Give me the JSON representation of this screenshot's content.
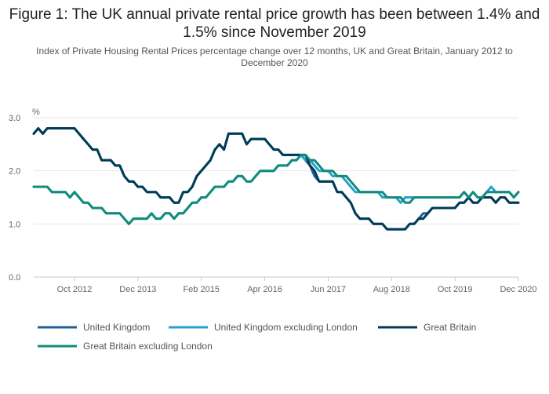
{
  "chart_data": {
    "type": "line",
    "title": "Figure 1: The UK annual private rental price growth has been between 1.4% and 1.5% since November 2019",
    "subtitle": "Index of Private Housing Rental Prices percentage change over 12 months, UK and Great Britain, January 2012 to December 2020",
    "ylabel": "%",
    "ylim": [
      0,
      3
    ],
    "yticks": [
      "0.0",
      "1.0",
      "2.0",
      "3.0"
    ],
    "xlim": [
      "2012-01",
      "2020-12"
    ],
    "xticks": [
      {
        "label": "Oct 2012",
        "date": "2012-10"
      },
      {
        "label": "Dec 2013",
        "date": "2013-12"
      },
      {
        "label": "Feb 2015",
        "date": "2015-02"
      },
      {
        "label": "Apr 2016",
        "date": "2016-04"
      },
      {
        "label": "Jun 2017",
        "date": "2017-06"
      },
      {
        "label": "Aug 2018",
        "date": "2018-08"
      },
      {
        "label": "Oct 2019",
        "date": "2019-10"
      },
      {
        "label": "Dec 2020",
        "date": "2020-12"
      }
    ],
    "grid": true,
    "legend_position": "bottom",
    "x": [
      "2012-01",
      "2012-02",
      "2012-03",
      "2012-04",
      "2012-05",
      "2012-06",
      "2012-07",
      "2012-08",
      "2012-09",
      "2012-10",
      "2012-11",
      "2012-12",
      "2013-01",
      "2013-02",
      "2013-03",
      "2013-04",
      "2013-05",
      "2013-06",
      "2013-07",
      "2013-08",
      "2013-09",
      "2013-10",
      "2013-11",
      "2013-12",
      "2014-01",
      "2014-02",
      "2014-03",
      "2014-04",
      "2014-05",
      "2014-06",
      "2014-07",
      "2014-08",
      "2014-09",
      "2014-10",
      "2014-11",
      "2014-12",
      "2015-01",
      "2015-02",
      "2015-03",
      "2015-04",
      "2015-05",
      "2015-06",
      "2015-07",
      "2015-08",
      "2015-09",
      "2015-10",
      "2015-11",
      "2015-12",
      "2016-01",
      "2016-02",
      "2016-03",
      "2016-04",
      "2016-05",
      "2016-06",
      "2016-07",
      "2016-08",
      "2016-09",
      "2016-10",
      "2016-11",
      "2016-12",
      "2017-01",
      "2017-02",
      "2017-03",
      "2017-04",
      "2017-05",
      "2017-06",
      "2017-07",
      "2017-08",
      "2017-09",
      "2017-10",
      "2017-11",
      "2017-12",
      "2018-01",
      "2018-02",
      "2018-03",
      "2018-04",
      "2018-05",
      "2018-06",
      "2018-07",
      "2018-08",
      "2018-09",
      "2018-10",
      "2018-11",
      "2018-12",
      "2019-01",
      "2019-02",
      "2019-03",
      "2019-04",
      "2019-05",
      "2019-06",
      "2019-07",
      "2019-08",
      "2019-09",
      "2019-10",
      "2019-11",
      "2019-12",
      "2020-01",
      "2020-02",
      "2020-03",
      "2020-04",
      "2020-05",
      "2020-06",
      "2020-07",
      "2020-08",
      "2020-09",
      "2020-10",
      "2020-11",
      "2020-12"
    ],
    "series": [
      {
        "name": "United Kingdom",
        "color": "#206095",
        "values": [
          2.7,
          2.8,
          2.7,
          2.8,
          2.8,
          2.8,
          2.8,
          2.8,
          2.8,
          2.8,
          2.7,
          2.6,
          2.5,
          2.4,
          2.4,
          2.2,
          2.2,
          2.2,
          2.1,
          2.1,
          1.9,
          1.8,
          1.8,
          1.7,
          1.7,
          1.6,
          1.6,
          1.6,
          1.5,
          1.5,
          1.5,
          1.4,
          1.4,
          1.6,
          1.6,
          1.7,
          1.9,
          2.0,
          2.1,
          2.2,
          2.4,
          2.5,
          2.4,
          2.7,
          2.7,
          2.7,
          2.7,
          2.5,
          2.6,
          2.6,
          2.6,
          2.6,
          2.5,
          2.4,
          2.4,
          2.3,
          2.3,
          2.3,
          2.3,
          2.3,
          2.2,
          2.1,
          1.9,
          1.8,
          1.8,
          1.8,
          1.8,
          1.6,
          1.6,
          1.5,
          1.4,
          1.2,
          1.1,
          1.1,
          1.1,
          1.0,
          1.0,
          1.0,
          0.9,
          0.9,
          0.9,
          0.9,
          0.9,
          1.0,
          1.0,
          1.1,
          1.2,
          1.2,
          1.3,
          1.3,
          1.3,
          1.3,
          1.3,
          1.3,
          1.4,
          1.4,
          1.5,
          1.4,
          1.4,
          1.5,
          1.5,
          1.5,
          1.4,
          1.5,
          1.5,
          1.4,
          1.4,
          1.4
        ]
      },
      {
        "name": "United Kingdom excluding London",
        "color": "#27a0cc",
        "values": [
          1.7,
          1.7,
          1.7,
          1.7,
          1.6,
          1.6,
          1.6,
          1.6,
          1.5,
          1.6,
          1.5,
          1.4,
          1.4,
          1.3,
          1.3,
          1.3,
          1.2,
          1.2,
          1.2,
          1.2,
          1.1,
          1.0,
          1.1,
          1.1,
          1.1,
          1.1,
          1.2,
          1.1,
          1.1,
          1.2,
          1.2,
          1.1,
          1.2,
          1.2,
          1.3,
          1.4,
          1.4,
          1.5,
          1.5,
          1.6,
          1.7,
          1.7,
          1.7,
          1.8,
          1.8,
          1.9,
          1.9,
          1.8,
          1.8,
          1.9,
          2.0,
          2.0,
          2.0,
          2.0,
          2.1,
          2.1,
          2.1,
          2.2,
          2.2,
          2.3,
          2.2,
          2.2,
          2.1,
          2.0,
          2.0,
          2.0,
          1.9,
          1.9,
          1.9,
          1.8,
          1.7,
          1.6,
          1.6,
          1.6,
          1.6,
          1.6,
          1.6,
          1.5,
          1.5,
          1.5,
          1.5,
          1.4,
          1.5,
          1.5,
          1.5,
          1.5,
          1.5,
          1.5,
          1.5,
          1.5,
          1.5,
          1.5,
          1.5,
          1.5,
          1.5,
          1.6,
          1.5,
          1.6,
          1.5,
          1.5,
          1.6,
          1.7,
          1.6,
          1.6,
          1.6,
          1.6,
          1.5,
          1.6
        ]
      },
      {
        "name": "Great Britain",
        "color": "#003c57",
        "values": [
          2.7,
          2.8,
          2.7,
          2.8,
          2.8,
          2.8,
          2.8,
          2.8,
          2.8,
          2.8,
          2.7,
          2.6,
          2.5,
          2.4,
          2.4,
          2.2,
          2.2,
          2.2,
          2.1,
          2.1,
          1.9,
          1.8,
          1.8,
          1.7,
          1.7,
          1.6,
          1.6,
          1.6,
          1.5,
          1.5,
          1.5,
          1.4,
          1.4,
          1.6,
          1.6,
          1.7,
          1.9,
          2.0,
          2.1,
          2.2,
          2.4,
          2.5,
          2.4,
          2.7,
          2.7,
          2.7,
          2.7,
          2.5,
          2.6,
          2.6,
          2.6,
          2.6,
          2.5,
          2.4,
          2.4,
          2.3,
          2.3,
          2.3,
          2.3,
          2.3,
          2.3,
          2.1,
          2.0,
          1.8,
          1.8,
          1.8,
          1.8,
          1.6,
          1.6,
          1.5,
          1.4,
          1.2,
          1.1,
          1.1,
          1.1,
          1.0,
          1.0,
          1.0,
          0.9,
          0.9,
          0.9,
          0.9,
          0.9,
          1.0,
          1.0,
          1.1,
          1.1,
          1.2,
          1.3,
          1.3,
          1.3,
          1.3,
          1.3,
          1.3,
          1.4,
          1.4,
          1.5,
          1.4,
          1.4,
          1.5,
          1.5,
          1.5,
          1.4,
          1.5,
          1.5,
          1.4,
          1.4,
          1.4
        ]
      },
      {
        "name": "Great Britain excluding London",
        "color": "#118c7b",
        "values": [
          1.7,
          1.7,
          1.7,
          1.7,
          1.6,
          1.6,
          1.6,
          1.6,
          1.5,
          1.6,
          1.5,
          1.4,
          1.4,
          1.3,
          1.3,
          1.3,
          1.2,
          1.2,
          1.2,
          1.2,
          1.1,
          1.0,
          1.1,
          1.1,
          1.1,
          1.1,
          1.2,
          1.1,
          1.1,
          1.2,
          1.2,
          1.1,
          1.2,
          1.2,
          1.3,
          1.4,
          1.4,
          1.5,
          1.5,
          1.6,
          1.7,
          1.7,
          1.7,
          1.8,
          1.8,
          1.9,
          1.9,
          1.8,
          1.8,
          1.9,
          2.0,
          2.0,
          2.0,
          2.0,
          2.1,
          2.1,
          2.1,
          2.2,
          2.2,
          2.3,
          2.3,
          2.2,
          2.2,
          2.1,
          2.0,
          2.0,
          2.0,
          1.9,
          1.9,
          1.9,
          1.8,
          1.7,
          1.6,
          1.6,
          1.6,
          1.6,
          1.6,
          1.6,
          1.5,
          1.5,
          1.5,
          1.5,
          1.4,
          1.4,
          1.5,
          1.5,
          1.5,
          1.5,
          1.5,
          1.5,
          1.5,
          1.5,
          1.5,
          1.5,
          1.5,
          1.6,
          1.5,
          1.6,
          1.5,
          1.5,
          1.6,
          1.6,
          1.6,
          1.6,
          1.6,
          1.6,
          1.5,
          1.6
        ]
      }
    ]
  }
}
